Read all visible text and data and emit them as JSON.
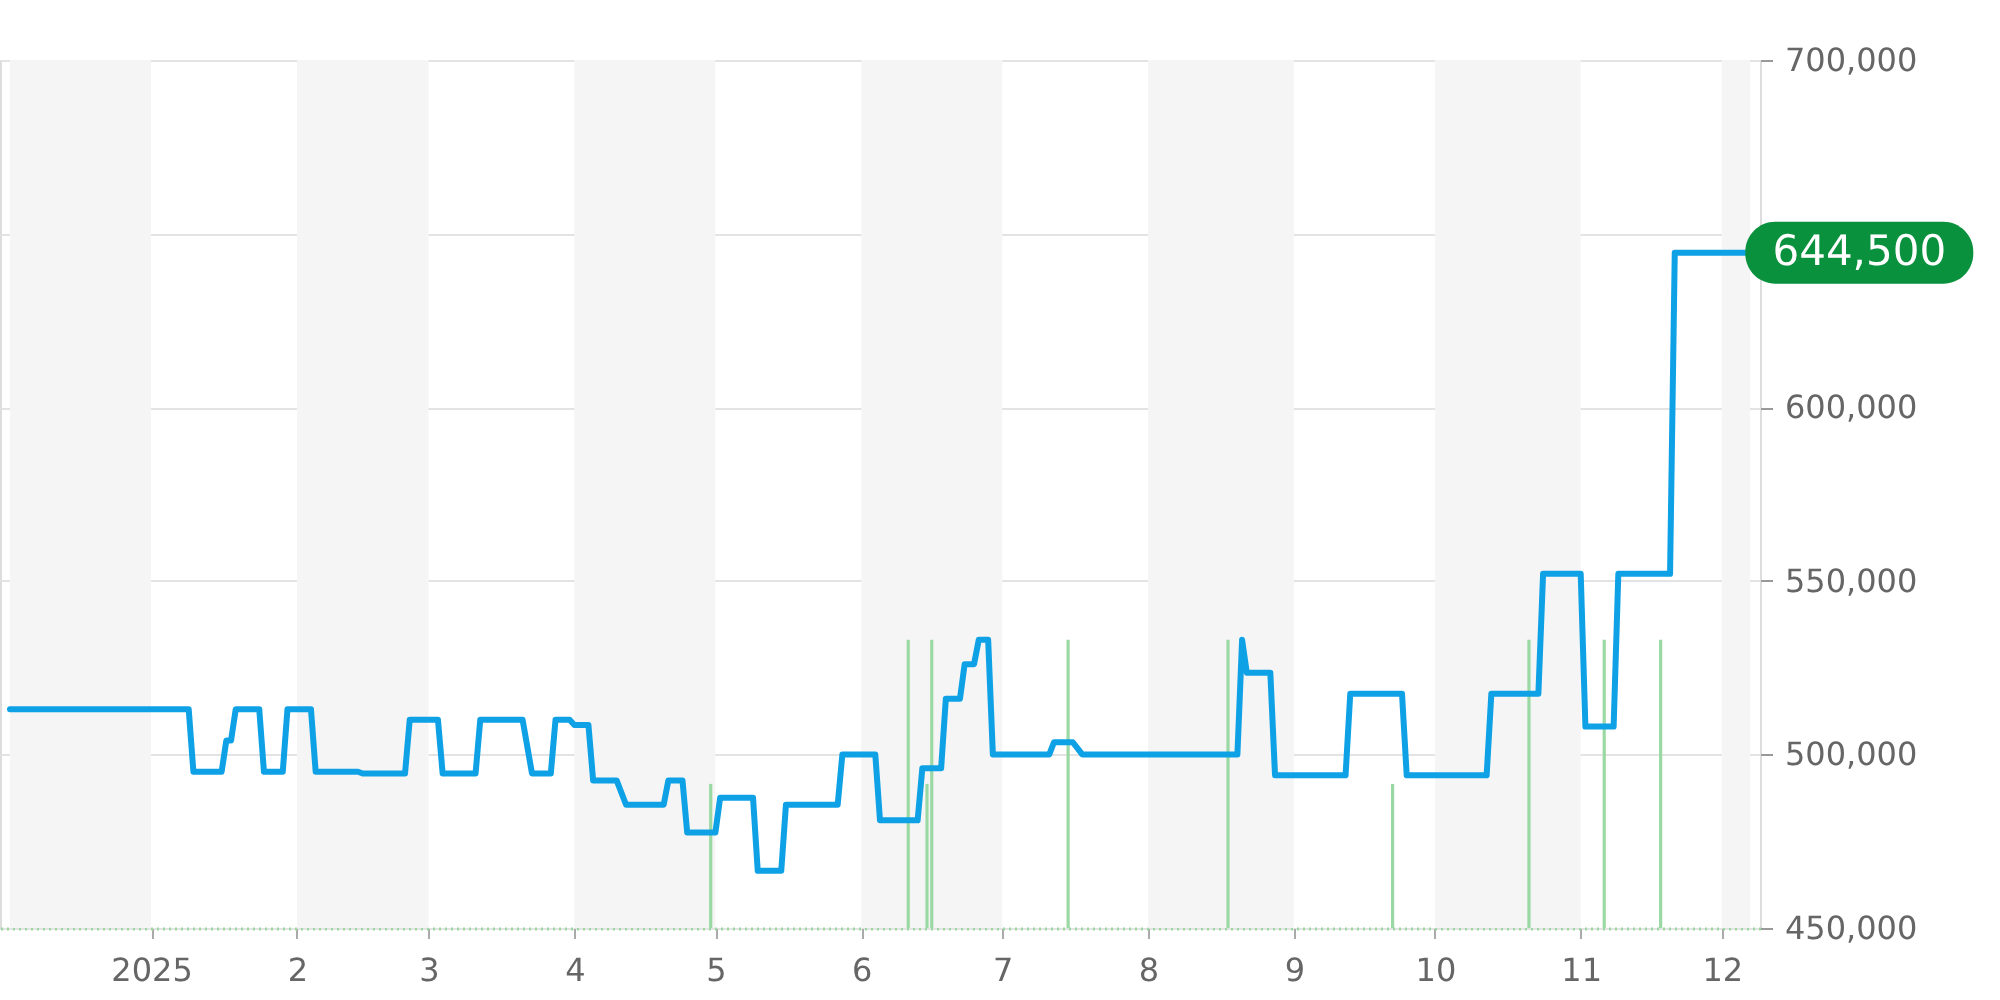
{
  "chart_data": {
    "type": "line",
    "series": [
      {
        "type": "bar",
        "color": "#9ad8a4",
        "x": [
          "2025-04-30",
          "2025-06-11",
          "2025-06-15",
          "2025-06-16",
          "2025-07-15",
          "2025-08-18",
          "2025-09-22",
          "2025-10-21",
          "2025-11-06",
          "2025-11-18"
        ],
        "values": [
          491500,
          533000,
          491500,
          533000,
          533000,
          533000,
          491500,
          533000,
          533000,
          533000
        ]
      },
      {
        "color": "#0ea1e6",
        "x": [
          "2024-12-02",
          "2025-01-09",
          "2025-01-10",
          "2025-01-16",
          "2025-01-17",
          "2025-01-18",
          "2025-01-19",
          "2025-01-24",
          "2025-01-25",
          "2025-01-29",
          "2025-01-30",
          "2025-02-04",
          "2025-02-05",
          "2025-02-14",
          "2025-02-15",
          "2025-02-24",
          "2025-02-25",
          "2025-03-03",
          "2025-03-04",
          "2025-03-11",
          "2025-03-12",
          "2025-03-21",
          "2025-03-23",
          "2025-03-27",
          "2025-03-28",
          "2025-03-31",
          "2025-04-01",
          "2025-04-04",
          "2025-04-05",
          "2025-04-10",
          "2025-04-12",
          "2025-04-20",
          "2025-04-21",
          "2025-04-24",
          "2025-04-25",
          "2025-05-01",
          "2025-05-02",
          "2025-05-09",
          "2025-05-10",
          "2025-05-15",
          "2025-05-16",
          "2025-05-27",
          "2025-05-28",
          "2025-06-04",
          "2025-06-05",
          "2025-06-13",
          "2025-06-14",
          "2025-06-18",
          "2025-06-19",
          "2025-06-22",
          "2025-06-23",
          "2025-06-25",
          "2025-06-26",
          "2025-06-28",
          "2025-06-29",
          "2025-07-11",
          "2025-07-12",
          "2025-07-16",
          "2025-07-18",
          "2025-08-20",
          "2025-08-21",
          "2025-08-22",
          "2025-08-27",
          "2025-08-28",
          "2025-09-12",
          "2025-09-13",
          "2025-09-24",
          "2025-09-25",
          "2025-10-12",
          "2025-10-13",
          "2025-10-23",
          "2025-10-24",
          "2025-11-01",
          "2025-11-02",
          "2025-11-08",
          "2025-11-09",
          "2025-11-20",
          "2025-11-21",
          "2025-12-06"
        ],
        "values": [
          513000,
          513000,
          495000,
          495000,
          504000,
          504000,
          513000,
          513000,
          495000,
          495000,
          513000,
          513000,
          495000,
          495000,
          494500,
          494500,
          510000,
          510000,
          494500,
          494500,
          510000,
          510000,
          494500,
          494500,
          510000,
          510000,
          508500,
          508500,
          492500,
          492500,
          485500,
          485500,
          492500,
          492500,
          477500,
          477500,
          487500,
          487500,
          466500,
          466500,
          485500,
          485500,
          500000,
          500000,
          481000,
          481000,
          496000,
          496000,
          516000,
          516000,
          526000,
          526000,
          533000,
          533000,
          500000,
          500000,
          503500,
          503500,
          500000,
          500000,
          533000,
          523500,
          523500,
          494000,
          494000,
          517500,
          517500,
          494000,
          494000,
          517500,
          517500,
          552000,
          552000,
          508000,
          508000,
          552000,
          552000,
          644500,
          644500
        ]
      }
    ],
    "xlim": [
      "2024-12-02",
      "2025-12-07"
    ],
    "xticks": [
      {
        "value": "2025-01-01",
        "label": "2025"
      },
      {
        "value": "2025-02-01",
        "label": "2"
      },
      {
        "value": "2025-03-01",
        "label": "3"
      },
      {
        "value": "2025-04-01",
        "label": "4"
      },
      {
        "value": "2025-05-01",
        "label": "5"
      },
      {
        "value": "2025-06-01",
        "label": "6"
      },
      {
        "value": "2025-07-01",
        "label": "7"
      },
      {
        "value": "2025-08-01",
        "label": "8"
      },
      {
        "value": "2025-09-01",
        "label": "9"
      },
      {
        "value": "2025-10-01",
        "label": "10"
      },
      {
        "value": "2025-11-01",
        "label": "11"
      },
      {
        "value": "2025-12-01",
        "label": "12"
      }
    ],
    "ylim": [
      450000,
      700000
    ],
    "yticks": [
      {
        "value": 450000,
        "label": "450,000"
      },
      {
        "value": 500000,
        "label": "500,000"
      },
      {
        "value": 550000,
        "label": "550,000"
      },
      {
        "value": 600000,
        "label": "600,000"
      },
      {
        "value": 650000,
        "label": null
      },
      {
        "value": 700000,
        "label": "700,000"
      }
    ],
    "grid": "y",
    "bands": [
      {
        "axis": "x",
        "from": "2024-12-02",
        "to": "2025-01-01",
        "color": "#f5f5f5"
      },
      {
        "axis": "x",
        "from": "2025-02-01",
        "to": "2025-03-01",
        "color": "#f5f5f5"
      },
      {
        "axis": "x",
        "from": "2025-04-01",
        "to": "2025-05-01",
        "color": "#f5f5f5"
      },
      {
        "axis": "x",
        "from": "2025-06-01",
        "to": "2025-07-01",
        "color": "#f5f5f5"
      },
      {
        "axis": "x",
        "from": "2025-08-01",
        "to": "2025-09-01",
        "color": "#f5f5f5"
      },
      {
        "axis": "x",
        "from": "2025-10-01",
        "to": "2025-11-01",
        "color": "#f5f5f5"
      },
      {
        "axis": "x",
        "from": "2025-12-01",
        "to": "2025-12-07",
        "color": "#f5f5f5"
      }
    ],
    "annotations": [
      {
        "text": "644,500",
        "x": "2025-12-06",
        "y": 644500
      }
    ]
  }
}
